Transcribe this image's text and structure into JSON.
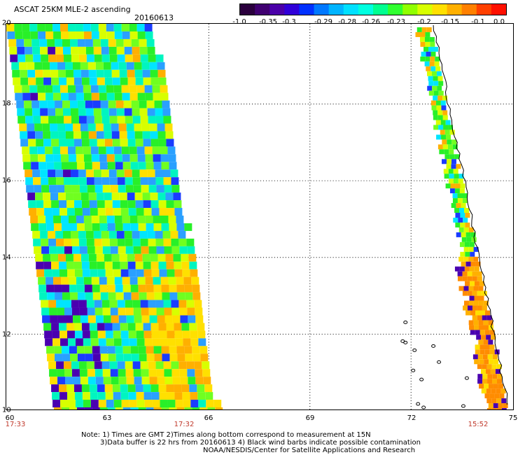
{
  "header": {
    "title": "ASCAT 25KM MLE-2 ascending",
    "date": "20160613"
  },
  "colorbar": {
    "colors": [
      "#2a003d",
      "#3f0070",
      "#4a00a8",
      "#3000d8",
      "#0030ff",
      "#0078ff",
      "#00b4ff",
      "#00e0ff",
      "#00ffe0",
      "#00ff90",
      "#30ff30",
      "#90ff00",
      "#d8ff00",
      "#ffe000",
      "#ffb000",
      "#ff8000",
      "#ff4000",
      "#ff1000"
    ],
    "ticks": [
      "-1.0",
      "-0.35",
      "-0.3",
      "-0.29",
      "-0.28",
      "-0.26",
      "-0.23",
      "-0.2",
      "-0.15",
      "-0.1",
      "0.0"
    ]
  },
  "map": {
    "lat_labels": [
      "20",
      "18",
      "16",
      "14",
      "12",
      "10"
    ],
    "lon_labels": [
      "60",
      "63",
      "66",
      "69",
      "72",
      "75"
    ],
    "time_labels": [
      "17:33",
      "17:32",
      "15:52"
    ],
    "lat_range": [
      10,
      20
    ],
    "lon_range": [
      60,
      75
    ]
  },
  "notes": {
    "line1": "Note: 1) Times are GMT 2)Times along bottom correspond to measurement at 15N",
    "line2": "3)Data buffer is 22 hrs from 20160613 4) Black wind barbs indicate possible contamination",
    "line3": "NOAA/NESDIS/Center for Satellite Applications and Research"
  }
}
